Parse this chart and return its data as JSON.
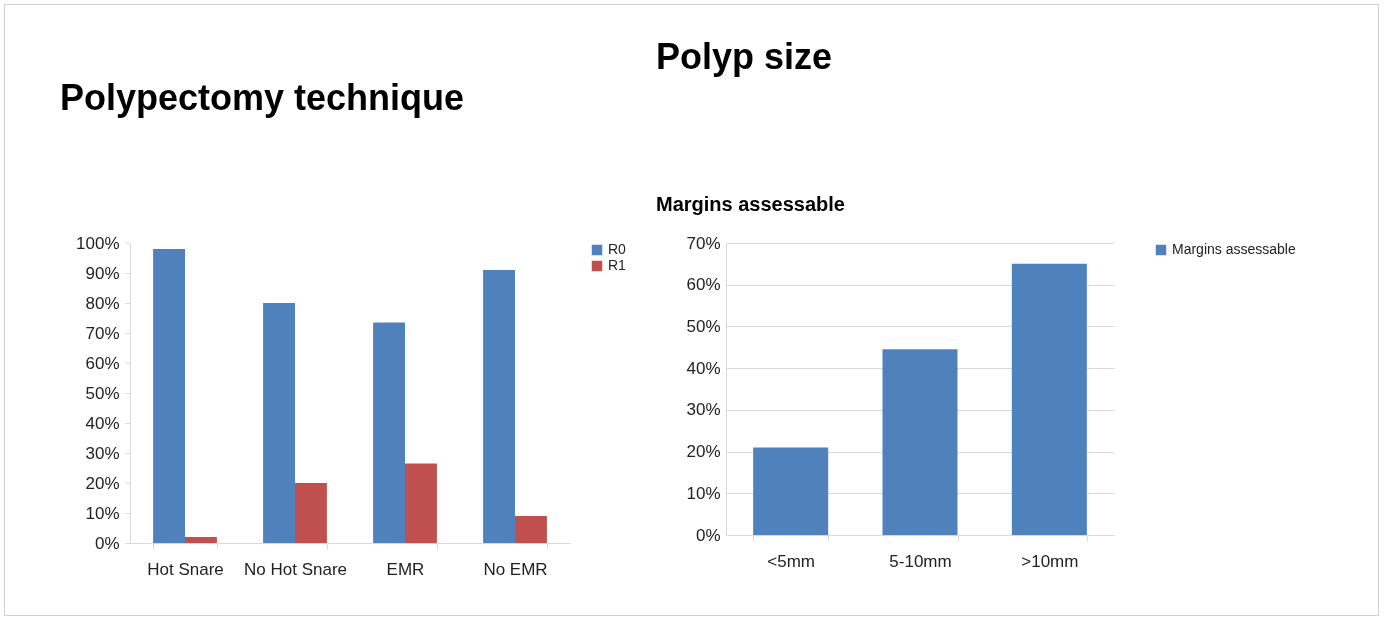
{
  "chart_data": [
    {
      "type": "bar",
      "title": "Polypectomy technique",
      "categories": [
        "Hot Snare",
        "No Hot Snare",
        "EMR",
        "No EMR"
      ],
      "series": [
        {
          "name": "R0",
          "color": "#4f81bd",
          "values": [
            98,
            80,
            73.5,
            91
          ]
        },
        {
          "name": "R1",
          "color": "#c0504d",
          "values": [
            2,
            20,
            26.5,
            9
          ]
        }
      ],
      "ylim": [
        0,
        100
      ],
      "yticks": [
        {
          "value": 0,
          "label": "0%"
        },
        {
          "value": 10,
          "label": "10%"
        },
        {
          "value": 20,
          "label": "20%"
        },
        {
          "value": 30,
          "label": "30%"
        },
        {
          "value": 40,
          "label": "40%"
        },
        {
          "value": 50,
          "label": "50%"
        },
        {
          "value": 60,
          "label": "60%"
        },
        {
          "value": 70,
          "label": "70%"
        },
        {
          "value": 80,
          "label": "80%"
        },
        {
          "value": 90,
          "label": "90%"
        },
        {
          "value": 100,
          "label": "100%"
        }
      ],
      "grid": false,
      "legend": "right"
    },
    {
      "type": "bar",
      "title": "Polyp size",
      "subtitle": "Margins assessable",
      "categories": [
        "<5mm",
        "5-10mm",
        ">10mm"
      ],
      "series": [
        {
          "name": "Margins assessable",
          "color": "#4f81bd",
          "values": [
            21,
            44.5,
            65
          ]
        }
      ],
      "ylim": [
        0,
        70
      ],
      "yticks": [
        {
          "value": 0,
          "label": "0%"
        },
        {
          "value": 10,
          "label": "10%"
        },
        {
          "value": 20,
          "label": "20%"
        },
        {
          "value": 30,
          "label": "30%"
        },
        {
          "value": 40,
          "label": "40%"
        },
        {
          "value": 50,
          "label": "50%"
        },
        {
          "value": 60,
          "label": "60%"
        },
        {
          "value": 70,
          "label": "70%"
        }
      ],
      "grid": "y",
      "legend": "right"
    }
  ]
}
